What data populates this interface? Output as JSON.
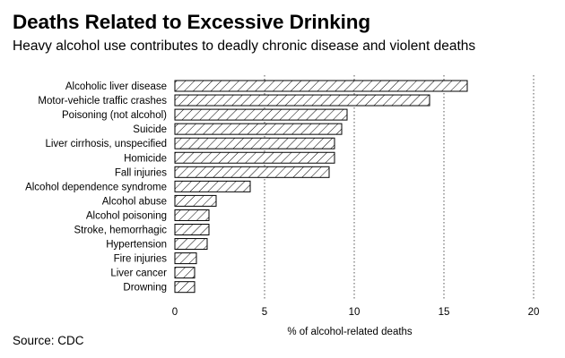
{
  "title": "Deaths Related to Excessive Drinking",
  "subtitle": "Heavy alcohol use contributes to deadly chronic disease and violent deaths",
  "source": "Source: CDC",
  "chart_data": {
    "type": "bar",
    "orientation": "horizontal",
    "title": "Deaths Related to Excessive Drinking",
    "subtitle": "Heavy alcohol use contributes to deadly chronic disease and violent deaths",
    "xlabel": "% of alcohol-related deaths",
    "ylabel": "",
    "xlim": [
      0,
      20
    ],
    "xticks": [
      0,
      5,
      10,
      15,
      20
    ],
    "grid": "vertical-dotted",
    "categories": [
      "Alcoholic liver disease",
      "Motor-vehicle traffic crashes",
      "Poisoning (not alcohol)",
      "Suicide",
      "Liver cirrhosis, unspecified",
      "Homicide",
      "Fall injuries",
      "Alcohol dependence syndrome",
      "Alcohol abuse",
      "Alcohol poisoning",
      "Stroke, hemorrhagic",
      "Hypertension",
      "Fire injuries",
      "Liver cancer",
      "Drowning"
    ],
    "values": [
      16.3,
      14.2,
      9.6,
      9.3,
      8.9,
      8.9,
      8.6,
      4.2,
      2.3,
      1.9,
      1.9,
      1.8,
      1.2,
      1.1,
      1.1
    ]
  }
}
